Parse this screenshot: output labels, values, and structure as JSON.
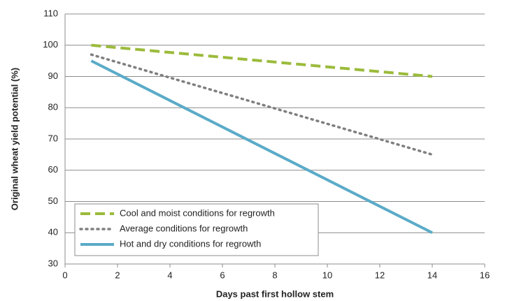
{
  "chart_data": {
    "type": "line",
    "x_label": "Days past first hollow stem",
    "y_label": "Original wheat yield potential (%)",
    "x": [
      1,
      14
    ],
    "series": [
      {
        "name": "Cool and moist conditions for regrowth",
        "color": "#9bbb3b",
        "style": "dashed",
        "values": [
          100,
          90
        ]
      },
      {
        "name": "Average conditions for regrowth",
        "color": "#7f7f7f",
        "style": "dotted",
        "values": [
          97,
          65
        ]
      },
      {
        "name": "Hot and dry conditions for regrowth",
        "color": "#5aabc8",
        "style": "solid",
        "values": [
          95,
          40
        ]
      }
    ],
    "xlim": [
      0,
      16
    ],
    "xticks": [
      0,
      2,
      4,
      6,
      8,
      10,
      12,
      14,
      16
    ],
    "ylim": [
      30,
      110
    ],
    "yticks": [
      30,
      40,
      50,
      60,
      70,
      80,
      90,
      100,
      110
    ],
    "grid": true,
    "legend": "lower left"
  }
}
